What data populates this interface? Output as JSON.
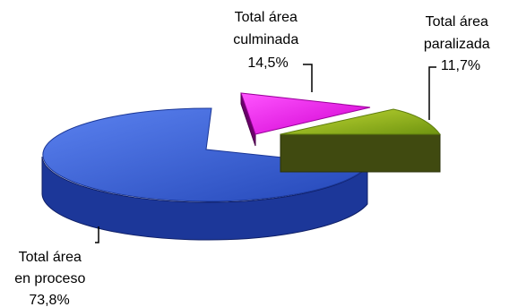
{
  "chart_data": {
    "type": "pie",
    "style": "3d-exploded",
    "legend": "none",
    "slices": [
      {
        "label_lines": [
          "Total área",
          "en proceso"
        ],
        "value": 73.8,
        "value_label": "73,8%",
        "color": "#3a5fd6"
      },
      {
        "label_lines": [
          "Total área",
          "culminada"
        ],
        "value": 14.5,
        "value_label": "14,5%",
        "color": "#e61ee6"
      },
      {
        "label_lines": [
          "Total área",
          "paralizada"
        ],
        "value": 11.7,
        "value_label": "11,7%",
        "color": "#8fb21a"
      }
    ]
  }
}
